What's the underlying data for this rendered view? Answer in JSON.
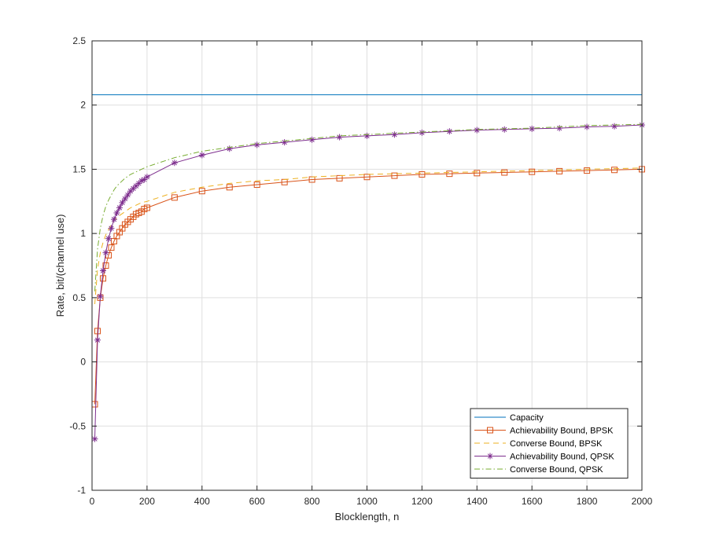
{
  "chart_data": {
    "type": "line",
    "xlabel": "Blocklength, n",
    "ylabel": "Rate, bit/(channel use)",
    "xlim": [
      0,
      2000
    ],
    "ylim": [
      -1,
      2.5
    ],
    "xticks": [
      0,
      200,
      400,
      600,
      800,
      1000,
      1200,
      1400,
      1600,
      1800,
      2000
    ],
    "yticks": [
      -1,
      -0.5,
      0,
      0.5,
      1,
      1.5,
      2,
      2.5
    ],
    "xtick_labels": [
      "0",
      "200",
      "400",
      "600",
      "800",
      "1000",
      "1200",
      "1400",
      "1600",
      "1800",
      "2000"
    ],
    "ytick_labels": [
      "-1",
      "-0.5",
      "0",
      "0.5",
      "1",
      "1.5",
      "2",
      "2.5"
    ],
    "grid": true,
    "legend_position": "bottom-right",
    "series": [
      {
        "name": "Capacity",
        "color": "#0072BD",
        "dash": "solid",
        "marker": "none",
        "x": [
          0,
          2000
        ],
        "y": [
          2.08,
          2.08
        ]
      },
      {
        "name": "Achievability Bound, BPSK",
        "color": "#D95319",
        "dash": "solid",
        "marker": "square",
        "x": [
          10,
          20,
          30,
          40,
          50,
          60,
          70,
          80,
          90,
          100,
          110,
          120,
          130,
          140,
          150,
          160,
          170,
          180,
          190,
          200,
          300,
          400,
          500,
          600,
          700,
          800,
          900,
          1000,
          1100,
          1200,
          1300,
          1400,
          1500,
          1600,
          1700,
          1800,
          1900,
          2000
        ],
        "y": [
          -0.33,
          0.24,
          0.5,
          0.65,
          0.75,
          0.83,
          0.89,
          0.94,
          0.98,
          1.01,
          1.04,
          1.07,
          1.09,
          1.11,
          1.13,
          1.15,
          1.16,
          1.17,
          1.19,
          1.2,
          1.28,
          1.33,
          1.36,
          1.38,
          1.4,
          1.42,
          1.43,
          1.44,
          1.45,
          1.46,
          1.465,
          1.47,
          1.475,
          1.48,
          1.485,
          1.49,
          1.495,
          1.5
        ]
      },
      {
        "name": "Converse Bound, BPSK",
        "color": "#EDB120",
        "dash": "dashed",
        "marker": "none",
        "x": [
          10,
          20,
          30,
          40,
          50,
          60,
          70,
          80,
          90,
          100,
          120,
          140,
          160,
          180,
          200,
          300,
          400,
          500,
          600,
          700,
          800,
          900,
          1000,
          1200,
          1400,
          1600,
          1800,
          2000
        ],
        "y": [
          0.45,
          0.72,
          0.85,
          0.93,
          0.99,
          1.03,
          1.07,
          1.1,
          1.12,
          1.14,
          1.17,
          1.2,
          1.22,
          1.24,
          1.25,
          1.32,
          1.36,
          1.39,
          1.41,
          1.42,
          1.44,
          1.45,
          1.46,
          1.47,
          1.48,
          1.49,
          1.5,
          1.51
        ]
      },
      {
        "name": "Achievability Bound, QPSK",
        "color": "#7E2F8E",
        "dash": "solid",
        "marker": "asterisk",
        "x": [
          10,
          20,
          30,
          40,
          50,
          60,
          70,
          80,
          90,
          100,
          110,
          120,
          130,
          140,
          150,
          160,
          170,
          180,
          190,
          200,
          300,
          400,
          500,
          600,
          700,
          800,
          900,
          1000,
          1100,
          1200,
          1300,
          1400,
          1500,
          1600,
          1700,
          1800,
          1900,
          2000
        ],
        "y": [
          -0.6,
          0.17,
          0.51,
          0.71,
          0.85,
          0.96,
          1.04,
          1.11,
          1.16,
          1.2,
          1.24,
          1.27,
          1.3,
          1.33,
          1.35,
          1.37,
          1.39,
          1.41,
          1.42,
          1.44,
          1.55,
          1.61,
          1.66,
          1.69,
          1.71,
          1.73,
          1.75,
          1.76,
          1.77,
          1.785,
          1.795,
          1.805,
          1.81,
          1.815,
          1.82,
          1.83,
          1.835,
          1.845
        ]
      },
      {
        "name": "Converse Bound, QPSK",
        "color": "#77AC30",
        "dash": "dashdot",
        "marker": "none",
        "x": [
          10,
          20,
          30,
          40,
          50,
          60,
          70,
          80,
          90,
          100,
          120,
          140,
          160,
          180,
          200,
          300,
          400,
          500,
          600,
          700,
          800,
          900,
          1000,
          1200,
          1400,
          1600,
          1800,
          2000
        ],
        "y": [
          0.55,
          0.88,
          1.04,
          1.14,
          1.21,
          1.26,
          1.3,
          1.34,
          1.37,
          1.39,
          1.43,
          1.46,
          1.48,
          1.5,
          1.52,
          1.59,
          1.64,
          1.67,
          1.7,
          1.72,
          1.74,
          1.76,
          1.77,
          1.79,
          1.81,
          1.82,
          1.84,
          1.85
        ]
      }
    ]
  }
}
